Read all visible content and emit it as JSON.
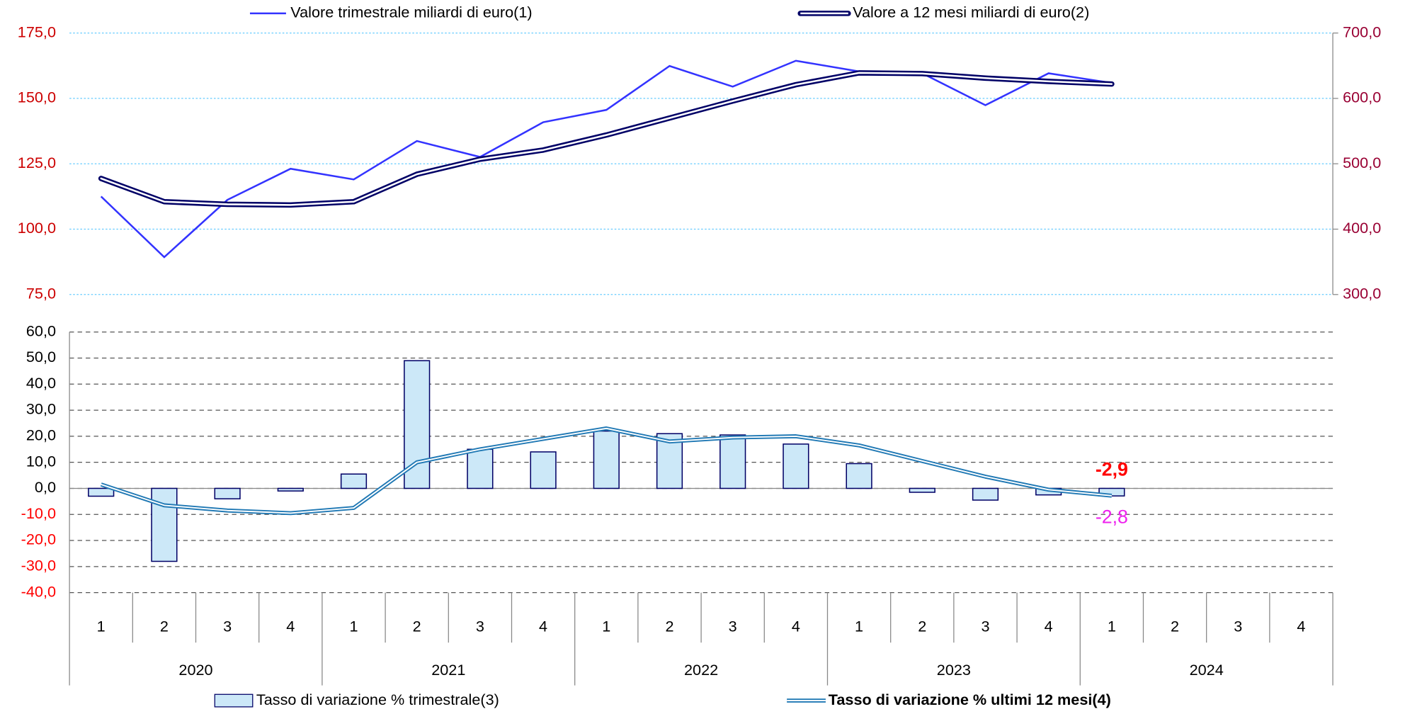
{
  "chart_data": [
    {
      "type": "line",
      "series": [
        {
          "name": "Valore trimestrale miliardi di euro(1)",
          "color": "#3333ff",
          "axis": "y",
          "values": [
            112.5,
            89.3,
            111.2,
            123.1,
            119.0,
            133.7,
            127.6,
            140.9,
            145.6,
            162.4,
            154.5,
            164.4,
            160.3,
            159.6,
            147.4,
            159.6,
            155.9,
            null,
            null,
            null
          ]
        },
        {
          "name": "Valore a 12 mesi miliardi di euro(2)",
          "color": "#000066",
          "axis": "y2",
          "values": [
            477.5,
            442,
            438,
            437,
            442,
            484,
            507,
            521,
            544,
            570,
            596,
            621,
            639,
            638,
            631,
            626,
            622,
            null,
            null,
            null
          ]
        }
      ],
      "ylim": [
        75,
        175
      ],
      "yticks": [
        {
          "value": 75,
          "label": "75,0"
        },
        {
          "value": 100,
          "label": "100,0"
        },
        {
          "value": 125,
          "label": "125,0"
        },
        {
          "value": 150,
          "label": "150,0"
        },
        {
          "value": 175,
          "label": "175,0"
        }
      ],
      "y2lim": [
        300,
        700
      ],
      "y2ticks": [
        {
          "value": 300,
          "label": "300,0"
        },
        {
          "value": 400,
          "label": "400,0"
        },
        {
          "value": 500,
          "label": "500,0"
        },
        {
          "value": 600,
          "label": "600,0"
        },
        {
          "value": 700,
          "label": "700,0"
        }
      ],
      "grid": true
    },
    {
      "type": "combo",
      "categories": [
        "1",
        "2",
        "3",
        "4",
        "1",
        "2",
        "3",
        "4",
        "1",
        "2",
        "3",
        "4",
        "1",
        "2",
        "3",
        "4",
        "1",
        "2",
        "3",
        "4"
      ],
      "groups": [
        "2020",
        "2021",
        "2022",
        "2023",
        "2024"
      ],
      "series": [
        {
          "name": "Tasso di variazione % trimestrale(3)",
          "type": "bar",
          "color": "#cce8f8",
          "values": [
            -3,
            -28,
            -4,
            -1,
            5.5,
            49,
            15,
            14,
            22,
            21,
            20.5,
            17,
            9.5,
            -1.5,
            -4.5,
            -2.5,
            -2.9,
            null,
            null,
            null
          ],
          "value_labels": [
            null,
            null,
            null,
            null,
            null,
            null,
            null,
            null,
            null,
            null,
            null,
            null,
            null,
            null,
            null,
            null,
            "-2,9",
            null,
            null,
            null
          ]
        },
        {
          "name": "Tasso di variazione % ultimi 12 mesi(4)",
          "type": "line",
          "color": "#1f78b4",
          "values": [
            1.5,
            -6.5,
            -8.5,
            -9.5,
            -7.5,
            10,
            15,
            19,
            23,
            18,
            19.5,
            20,
            16.5,
            10.5,
            4.5,
            -0.5,
            -2.8,
            null,
            null,
            null
          ],
          "value_labels": [
            null,
            null,
            null,
            null,
            null,
            null,
            null,
            null,
            null,
            null,
            null,
            null,
            null,
            null,
            null,
            null,
            "-2,8",
            null,
            null,
            null
          ]
        }
      ],
      "ylim": [
        -40,
        60
      ],
      "yticks": [
        {
          "value": -40,
          "label": "-40,0"
        },
        {
          "value": -30,
          "label": "-30,0"
        },
        {
          "value": -20,
          "label": "-20,0"
        },
        {
          "value": -10,
          "label": "-10,0"
        },
        {
          "value": 0,
          "label": "0,0"
        },
        {
          "value": 10,
          "label": "10,0"
        },
        {
          "value": 20,
          "label": "20,0"
        },
        {
          "value": 30,
          "label": "30,0"
        },
        {
          "value": 40,
          "label": "40,0"
        },
        {
          "value": 50,
          "label": "50,0"
        },
        {
          "value": 60,
          "label": "60,0"
        }
      ],
      "grid": true
    }
  ]
}
